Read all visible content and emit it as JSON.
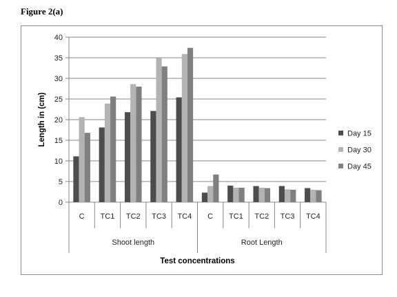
{
  "figure_caption": "Figure 2(a)",
  "colors": {
    "Day 15": "#4d4d4d",
    "Day 30": "#b3b3b3",
    "Day 45": "#808080",
    "gridline": "#878787",
    "axis": "#878787"
  },
  "chart_data": {
    "type": "bar",
    "title": "",
    "xlabel": "Test concentrations",
    "ylabel": "Length in (cm)",
    "ylim": [
      0,
      40
    ],
    "yticks": [
      0,
      5,
      10,
      15,
      20,
      25,
      30,
      35,
      40
    ],
    "grid": true,
    "legend_position": "right",
    "groups": [
      {
        "label": "Shoot length",
        "categories": [
          "C",
          "TC1",
          "TC2",
          "TC3",
          "TC4"
        ]
      },
      {
        "label": "Root Length",
        "categories": [
          "C",
          "TC1",
          "TC2",
          "TC3",
          "TC4"
        ]
      }
    ],
    "series": [
      {
        "name": "Day 15",
        "values": [
          11.1,
          18.1,
          21.8,
          22.1,
          25.4,
          2.3,
          4.0,
          3.9,
          3.9,
          3.4
        ]
      },
      {
        "name": "Day 30",
        "values": [
          20.6,
          23.9,
          28.6,
          34.9,
          35.9,
          3.9,
          3.5,
          3.5,
          3.1,
          3.0
        ]
      },
      {
        "name": "Day 45",
        "values": [
          16.8,
          25.6,
          28.0,
          32.9,
          37.4,
          6.7,
          3.5,
          3.4,
          3.0,
          2.9
        ]
      }
    ]
  }
}
